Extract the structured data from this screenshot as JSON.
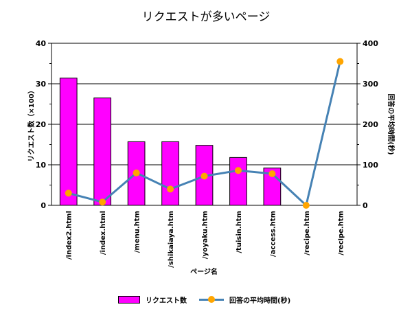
{
  "chart_data": {
    "type": "bar",
    "title": "リクエストが多いページ",
    "xlabel": "ページ名",
    "ylabel": "リクエスト数（×100）",
    "y2label": "回答の平均時間(秒)",
    "categories": [
      "/index2.html",
      "/index.html",
      "/menu.htm",
      "/shikaiaya.htm",
      "/yoyaku.htm",
      "/tuisin.htm",
      "/access.htm",
      "/recipe.htm",
      "/recipe.htm"
    ],
    "ylim": [
      0,
      40
    ],
    "y2lim": [
      0,
      400
    ],
    "yticks": [
      "0",
      "10",
      "20",
      "30",
      "40"
    ],
    "y2ticks": [
      "0",
      "100",
      "200",
      "300",
      "400"
    ],
    "grid": true,
    "legend_position": "bottom",
    "series": [
      {
        "name": "リクエスト数",
        "kind": "bar",
        "axis": "left",
        "color": "#ff00ff",
        "values": [
          31.4,
          26.5,
          15.7,
          15.7,
          14.8,
          11.8,
          9.2,
          null,
          null
        ]
      },
      {
        "name": "回答の平均時間(秒)",
        "kind": "line",
        "axis": "right",
        "color": "#4682b4",
        "marker_color": "#ffa500",
        "values": [
          30,
          8,
          80,
          40,
          72,
          86,
          78,
          0,
          355
        ]
      }
    ]
  }
}
